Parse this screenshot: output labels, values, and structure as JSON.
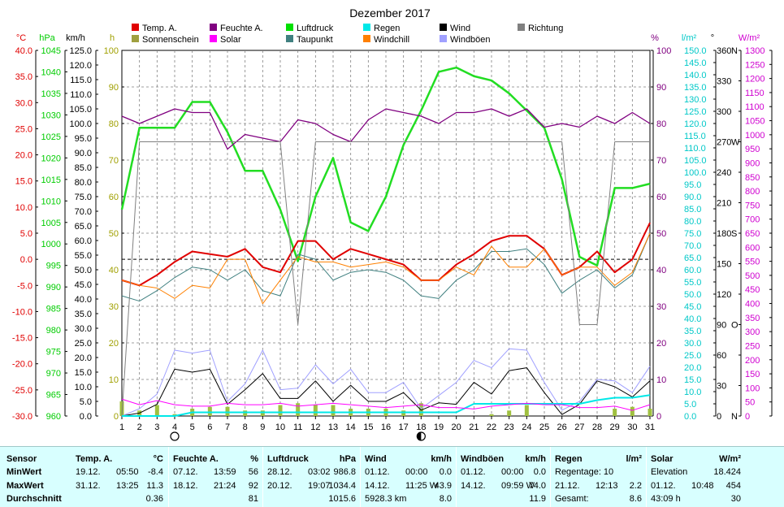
{
  "chart_data": {
    "type": "line",
    "title": "Dezember 2017",
    "x": [
      1,
      2,
      3,
      4,
      5,
      6,
      7,
      8,
      9,
      10,
      11,
      12,
      13,
      14,
      15,
      16,
      17,
      18,
      19,
      20,
      21,
      22,
      23,
      24,
      25,
      26,
      27,
      28,
      29,
      30,
      31
    ],
    "axes": [
      {
        "unit": "°C",
        "color": "#e00000",
        "min": -30,
        "max": 40,
        "step": 5
      },
      {
        "unit": "hPa",
        "color": "#00cc00",
        "min": 960,
        "max": 1045,
        "step": 5
      },
      {
        "unit": "km/h",
        "color": "#000000",
        "min": 0,
        "max": 125,
        "step": 5
      },
      {
        "unit": "h",
        "color": "#a0a000",
        "min": 0,
        "max": 100,
        "step": 10
      },
      {
        "unit": "%",
        "color": "#800080",
        "min": 0,
        "max": 100,
        "step": 10
      },
      {
        "unit": "l/m²",
        "color": "#00c8c8",
        "min": 0,
        "max": 150,
        "step": 5
      },
      {
        "unit": "°",
        "color": "#000000",
        "min": 0,
        "max": 360,
        "step": 30
      },
      {
        "unit": "W/m²",
        "color": "#d000d0",
        "min": 0,
        "max": 1300,
        "step": 50
      }
    ],
    "direction_labels": [
      "N",
      "O",
      "S",
      "W",
      "N"
    ],
    "legend": [
      {
        "name": "Temp. A.",
        "color": "#e00000"
      },
      {
        "name": "Feuchte A.",
        "color": "#800080"
      },
      {
        "name": "Luftdruck",
        "color": "#00e000"
      },
      {
        "name": "Regen",
        "color": "#00e8e8"
      },
      {
        "name": "Wind",
        "color": "#000000"
      },
      {
        "name": "Richtung",
        "color": "#808080"
      },
      {
        "name": "Sonnenschein",
        "color": "#a0a040"
      },
      {
        "name": "Solar",
        "color": "#ff00ff"
      },
      {
        "name": "Taupunkt",
        "color": "#408080"
      },
      {
        "name": "Windchill",
        "color": "#ff8000"
      },
      {
        "name": "Windböen",
        "color": "#a0a0ff"
      }
    ],
    "series": [
      {
        "name": "Luftdruck",
        "axis": 1,
        "color": "#22dd22",
        "width": 2.5,
        "values": [
          1008,
          1027,
          1027,
          1027,
          1033,
          1033,
          1026,
          1017,
          1017,
          1008,
          996,
          1011,
          1020,
          1005,
          1003,
          1011,
          1023,
          1031,
          1040,
          1041,
          1039,
          1038,
          1035,
          1031,
          1027,
          1015,
          997,
          995,
          1013,
          1013,
          1014
        ]
      },
      {
        "name": "Temp. A.",
        "axis": 0,
        "color": "#e00000",
        "width": 2,
        "values": [
          -4,
          -5,
          -3,
          -0.5,
          1.5,
          1,
          0.5,
          2,
          -1.5,
          -2.5,
          3.5,
          3.5,
          0,
          2,
          1,
          0,
          -1,
          -4,
          -4,
          -1,
          1,
          3.5,
          4.5,
          4.5,
          2,
          -3,
          -1.5,
          1.5,
          -2.5,
          0,
          7
        ]
      },
      {
        "name": "Feuchte A.",
        "axis": 4,
        "color": "#800080",
        "width": 1.3,
        "values": [
          82,
          80,
          82,
          84,
          83,
          83,
          73,
          77,
          76,
          75,
          81,
          80,
          77,
          75,
          81,
          84,
          83,
          82,
          80,
          83,
          83,
          84,
          82,
          84,
          79,
          80,
          79,
          82,
          80,
          83,
          80
        ]
      },
      {
        "name": "Taupunkt",
        "axis": 0,
        "color": "#408080",
        "width": 1,
        "values": [
          -7,
          -8,
          -6,
          -3.5,
          -1.5,
          -2,
          -4,
          -2,
          -6,
          -7,
          1,
          0,
          -4,
          -2.5,
          -2,
          -2.5,
          -4,
          -7,
          -7.5,
          -4,
          -2,
          1.5,
          1.5,
          2,
          -1,
          -6.5,
          -4,
          -2,
          -5.5,
          -3,
          5
        ]
      },
      {
        "name": "Windchill",
        "axis": 0,
        "color": "#ff8000",
        "width": 1,
        "values": [
          -4,
          -5,
          -5.5,
          -7.5,
          -5,
          -5.5,
          0,
          0,
          -8.5,
          -4,
          0.5,
          -0.5,
          -0.5,
          -1.5,
          -1,
          -0.5,
          -1.5,
          -4,
          -4,
          -1.5,
          -3,
          2.5,
          -1.5,
          -1.5,
          2,
          -3,
          -1.5,
          -1.5,
          -5,
          -2.5,
          5
        ]
      },
      {
        "name": "Windböen",
        "axis": 2,
        "color": "#a0a0ff",
        "width": 1,
        "values": [
          0,
          2.5,
          7.5,
          22.5,
          21.5,
          22.5,
          5,
          11,
          22.5,
          9,
          9.5,
          17.5,
          11,
          16,
          8,
          8,
          11.5,
          2.5,
          7,
          11.5,
          19,
          16.5,
          23,
          22.5,
          11.5,
          2,
          5,
          12.5,
          12,
          8,
          17
        ]
      },
      {
        "name": "Wind",
        "axis": 2,
        "color": "#000000",
        "width": 1,
        "values": [
          0,
          1,
          4,
          16,
          15,
          16,
          4,
          9,
          14.5,
          6,
          6,
          12,
          5,
          10.5,
          5,
          5,
          8,
          2,
          4.5,
          4,
          11.5,
          7.5,
          15.5,
          16.5,
          8,
          0.5,
          4,
          12,
          10,
          6.5,
          12
        ]
      },
      {
        "name": "Richtung",
        "axis": 6,
        "color": "#808080",
        "width": 1,
        "values": [
          0,
          270,
          270,
          270,
          270,
          270,
          270,
          270,
          270,
          270,
          90,
          270,
          270,
          270,
          270,
          270,
          270,
          270,
          270,
          270,
          270,
          270,
          270,
          270,
          270,
          270,
          90,
          90,
          270,
          270,
          270
        ]
      },
      {
        "name": "Regen",
        "axis": 5,
        "color": "#00e8e8",
        "width": 2,
        "values": [
          0,
          0,
          0,
          0,
          1.5,
          1.5,
          1.5,
          1.5,
          1.5,
          1.5,
          1.5,
          1.5,
          1.5,
          1.5,
          1.5,
          1.5,
          1.5,
          1.5,
          1.5,
          1.5,
          5,
          5,
          5,
          5,
          5,
          5,
          5,
          6.5,
          7.5,
          7.5,
          8.6
        ]
      },
      {
        "name": "Solar",
        "axis": 7,
        "color": "#ff00ff",
        "width": 1,
        "values": [
          60,
          40,
          55,
          40,
          35,
          35,
          45,
          40,
          40,
          45,
          35,
          40,
          45,
          40,
          35,
          30,
          35,
          40,
          30,
          30,
          25,
          35,
          40,
          45,
          40,
          40,
          30,
          30,
          35,
          20,
          40
        ]
      }
    ],
    "sunshine": {
      "name": "Sonnenschein",
      "axis": 3,
      "color": "#a0c040",
      "values": [
        4,
        1.5,
        3,
        0.5,
        2,
        2.5,
        2.5,
        1.5,
        1.5,
        3,
        3.5,
        3,
        3,
        2,
        2,
        2,
        1.5,
        3.5,
        0,
        0,
        0,
        0.5,
        1.5,
        3,
        0,
        0,
        0,
        0,
        2,
        2.5,
        2
      ]
    },
    "reference_line": {
      "axis": 0,
      "value": 0
    },
    "moon_phases": [
      {
        "day": 4,
        "phase": "new"
      },
      {
        "day": 18,
        "phase": "full"
      }
    ]
  },
  "stats": {
    "row_labels": [
      "Sensor",
      "MinWert",
      "MaxWert",
      "Durchschnitt"
    ],
    "columns": [
      {
        "title": "Temp. A.",
        "unit": "°C",
        "min": [
          "19.12.",
          "05:50",
          "-8.4"
        ],
        "max": [
          "31.12.",
          "13:25",
          "11.3"
        ],
        "avg": [
          "",
          "",
          "0.36"
        ]
      },
      {
        "title": "Feuchte A.",
        "unit": "%",
        "min": [
          "07.12.",
          "13:59",
          "56"
        ],
        "max": [
          "18.12.",
          "21:24",
          "92"
        ],
        "avg": [
          "",
          "",
          "81"
        ]
      },
      {
        "title": "Luftdruck",
        "unit": "hPa",
        "min": [
          "28.12.",
          "03:02",
          "986.8"
        ],
        "max": [
          "20.12.",
          "19:07",
          "1034.4"
        ],
        "avg": [
          "",
          "",
          "1015.6"
        ]
      },
      {
        "title": "Wind",
        "unit": "km/h",
        "min": [
          "01.12.",
          "00:00",
          "0.0"
        ],
        "max": [
          "14.12.",
          "11:25 W",
          "43.9"
        ],
        "avg": [
          "5928.3 km",
          "",
          "8.0"
        ]
      },
      {
        "title": "Windböen",
        "unit": "km/h",
        "min": [
          "01.12.",
          "00:00",
          "0.0"
        ],
        "max": [
          "14.12.",
          "09:59 W",
          "74.0"
        ],
        "avg": [
          "",
          "",
          "11.9"
        ]
      },
      {
        "title": "Regen",
        "unit": "l/m²",
        "min": [
          "Regentage: 10",
          "",
          ""
        ],
        "max": [
          "21.12.",
          "12:13",
          "2.2"
        ],
        "avg": [
          "Gesamt:",
          "",
          "8.6"
        ]
      },
      {
        "title": "Solar",
        "unit": "W/m²",
        "min": [
          "Elevation",
          "",
          "18.424"
        ],
        "max": [
          "01.12.",
          "10:48",
          "454"
        ],
        "avg": [
          "43:09 h",
          "",
          "30"
        ]
      }
    ]
  }
}
